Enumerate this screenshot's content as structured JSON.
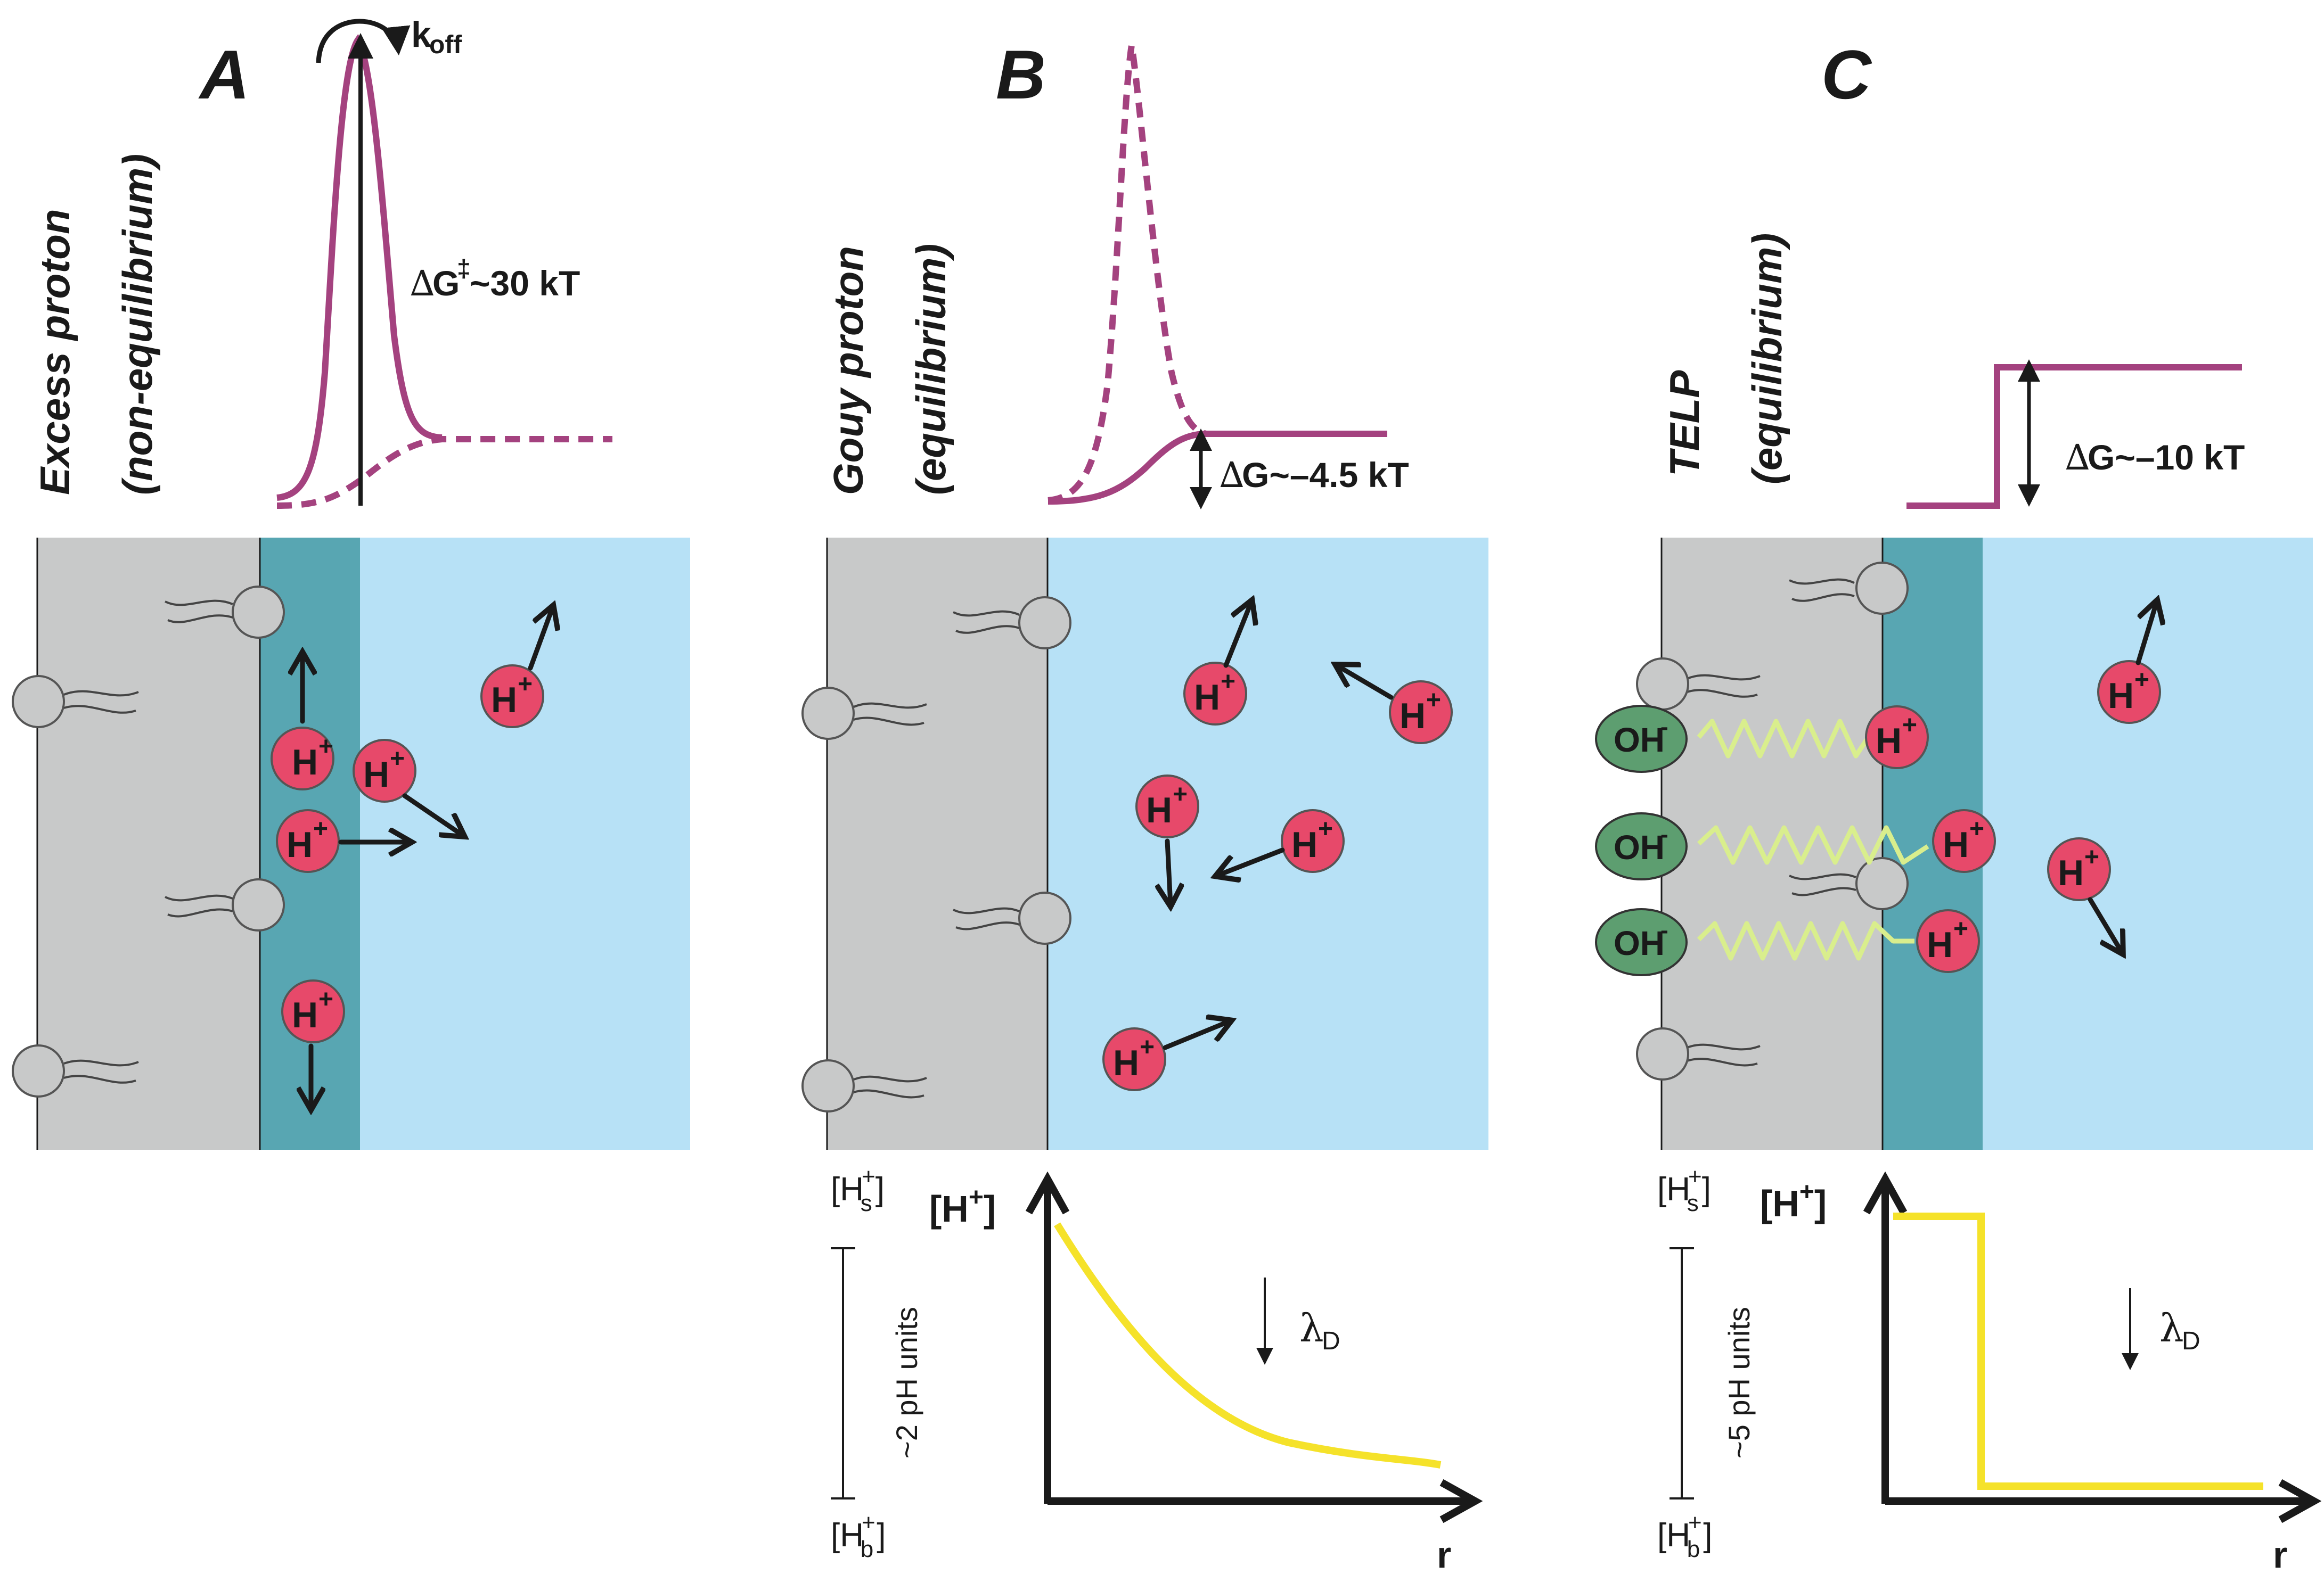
{
  "colors": {
    "membrane": "#c8c9c9",
    "interface": "#58a6b2",
    "bulk": "#b7e1f6",
    "proton": "#e7496a",
    "hydroxide": "#5d9e70",
    "energy": "#a4427f",
    "concentration": "#f5e22a",
    "spring": "#d9ee8d"
  },
  "panels": {
    "A": {
      "letter": "A",
      "label_1": "Excess proton",
      "label_2": "(non-equilibrium)",
      "koff_k": "k",
      "koff_sub": "off",
      "dg_delta": "∆",
      "dg_g": "G",
      "dg_ddagger": "‡",
      "dg_value": "~30 kT",
      "proton_h": "H",
      "proton_plus": "+"
    },
    "B": {
      "letter": "B",
      "label_1": "Gouy proton",
      "label_2": "(equilibrium)",
      "dg_delta": "∆",
      "dg_text": "G~–4.5 kT",
      "proton_h": "H",
      "proton_plus": "+",
      "graph": {
        "y_label_h": "[H",
        "y_label_plus": "+",
        "y_label_close": "]",
        "x_label": "r",
        "top_label": "[H",
        "top_sup": "+",
        "top_sub": "s",
        "bottom_label": "[H",
        "bottom_sup": "+",
        "bottom_sub": "b",
        "range_label": "~2 pH units",
        "lambda": "λ",
        "lambda_sub": "D"
      }
    },
    "C": {
      "letter": "C",
      "label_1": "TELP",
      "label_2": "(equilibrium)",
      "dg_delta": "∆",
      "dg_text": "G~–10 kT",
      "proton_h": "H",
      "proton_plus": "+",
      "hydroxide_oh": "OH",
      "hydroxide_minus": "-",
      "graph": {
        "y_label_h": "[H",
        "y_label_plus": "+",
        "y_label_close": "]",
        "x_label": "r",
        "top_label": "[H",
        "top_sup": "+",
        "top_sub": "s",
        "bottom_label": "[H",
        "bottom_sup": "+",
        "bottom_sub": "b",
        "range_label": "~5 pH units",
        "lambda": "λ",
        "lambda_sub": "D"
      }
    }
  }
}
